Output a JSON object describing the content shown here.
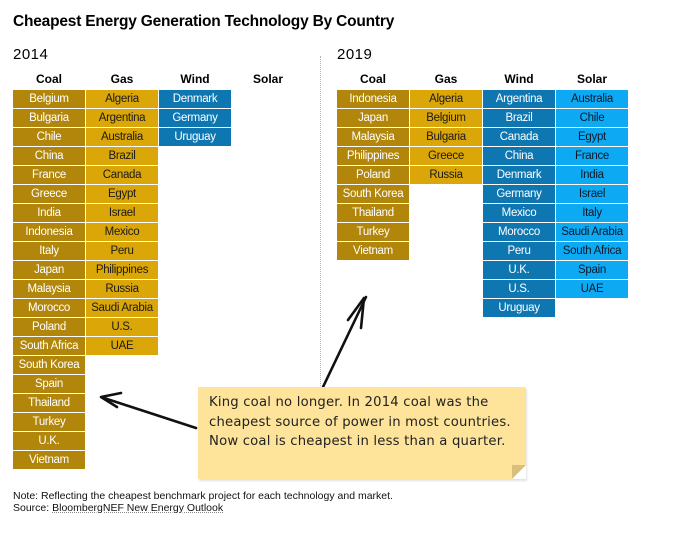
{
  "chart_data": {
    "type": "table",
    "title": "Cheapest Energy Generation Technology By Country",
    "technologies": [
      "Coal",
      "Gas",
      "Wind",
      "Solar"
    ],
    "colors": {
      "Coal": "#b2860a",
      "Gas": "#dba607",
      "Wind": "#0e77b1",
      "Solar": "#0ea9f3"
    },
    "panels": [
      {
        "year": "2014",
        "columns": {
          "Coal": [
            "Belgium",
            "Bulgaria",
            "Chile",
            "China",
            "France",
            "Greece",
            "India",
            "Indonesia",
            "Italy",
            "Japan",
            "Malaysia",
            "Morocco",
            "Poland",
            "South Africa",
            "South Korea",
            "Spain",
            "Thailand",
            "Turkey",
            "U.K.",
            "Vietnam"
          ],
          "Gas": [
            "Algeria",
            "Argentina",
            "Australia",
            "Brazil",
            "Canada",
            "Egypt",
            "Israel",
            "Mexico",
            "Peru",
            "Philippines",
            "Russia",
            "Saudi Arabia",
            "U.S.",
            "UAE"
          ],
          "Wind": [
            "Denmark",
            "Germany",
            "Uruguay"
          ],
          "Solar": []
        }
      },
      {
        "year": "2019",
        "columns": {
          "Coal": [
            "Indonesia",
            "Japan",
            "Malaysia",
            "Philippines",
            "Poland",
            "South Korea",
            "Thailand",
            "Turkey",
            "Vietnam"
          ],
          "Gas": [
            "Algeria",
            "Belgium",
            "Bulgaria",
            "Greece",
            "Russia"
          ],
          "Wind": [
            "Argentina",
            "Brazil",
            "Canada",
            "China",
            "Denmark",
            "Germany",
            "Mexico",
            "Morocco",
            "Peru",
            "U.K.",
            "U.S.",
            "Uruguay"
          ],
          "Solar": [
            "Australia",
            "Chile",
            "Egypt",
            "France",
            "India",
            "Israel",
            "Italy",
            "Saudi Arabia",
            "South Africa",
            "Spain",
            "UAE"
          ]
        }
      }
    ]
  },
  "annotation": {
    "text": "King coal no longer. In 2014 coal was the cheapest source of power in most countries. Now coal is cheapest in less than a quarter."
  },
  "footer": {
    "note": "Note: Reflecting the cheapest benchmark project for each technology and market.",
    "source_prefix": "Source: ",
    "source_link": "BloombergNEF New Energy Outlook"
  }
}
